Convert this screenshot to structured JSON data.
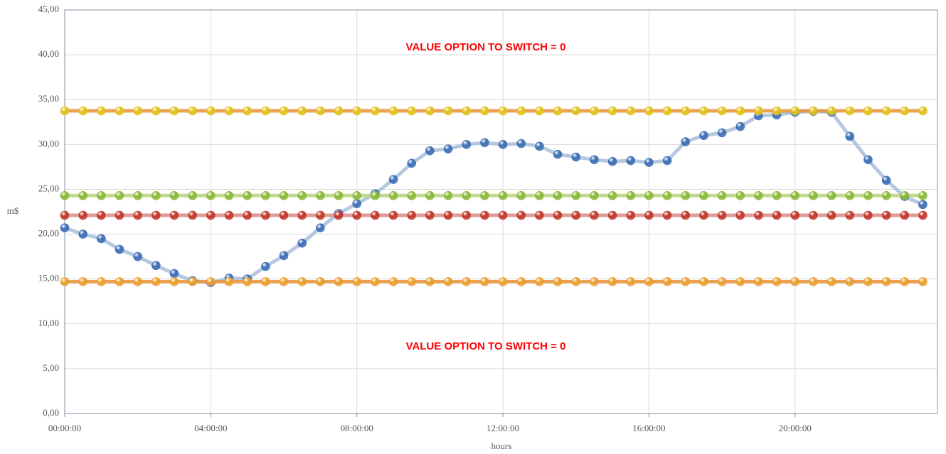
{
  "chart_data": {
    "type": "line",
    "x_label": "hours",
    "y_label": "m$",
    "annotations": [
      "VALUE OPTION TO SWITCH = 0",
      "VALUE OPTION TO SWITCH = 0"
    ],
    "x": [
      0,
      0.5,
      1,
      1.5,
      2,
      2.5,
      3,
      3.5,
      4,
      4.5,
      5,
      5.5,
      6,
      6.5,
      7,
      7.5,
      8,
      8.5,
      9,
      9.5,
      10,
      10.5,
      11,
      11.5,
      12,
      12.5,
      13,
      13.5,
      14,
      14.5,
      15,
      15.5,
      16,
      16.5,
      17,
      17.5,
      18,
      18.5,
      19,
      19.5,
      20,
      20.5,
      21,
      21.5,
      22,
      22.5,
      23,
      23.5
    ],
    "series": [
      {
        "color": "#3d6fb5",
        "line_color": "#a9bedb",
        "values": [
          20.7,
          20.0,
          19.5,
          18.3,
          17.5,
          16.5,
          15.6,
          14.8,
          14.6,
          15.1,
          15.0,
          16.4,
          17.6,
          19.0,
          20.7,
          22.3,
          23.4,
          24.5,
          26.1,
          27.9,
          29.3,
          29.5,
          30.0,
          30.2,
          30.0,
          30.1,
          29.8,
          28.9,
          28.6,
          28.3,
          28.1,
          28.2,
          28.0,
          28.2,
          30.3,
          31.0,
          31.3,
          32.0,
          33.2,
          33.3,
          33.6,
          33.7,
          33.6,
          30.9,
          28.3,
          26.0,
          24.2,
          23.3
        ]
      },
      {
        "color": "#e0c21c",
        "line_color": "#e8923a",
        "values": [
          33.75,
          33.75,
          33.75,
          33.75,
          33.75,
          33.75,
          33.75,
          33.75,
          33.75,
          33.75,
          33.75,
          33.75,
          33.75,
          33.75,
          33.75,
          33.75,
          33.75,
          33.75,
          33.75,
          33.75,
          33.75,
          33.75,
          33.75,
          33.75,
          33.75,
          33.75,
          33.75,
          33.75,
          33.75,
          33.75,
          33.75,
          33.75,
          33.75,
          33.75,
          33.75,
          33.75,
          33.75,
          33.75,
          33.75,
          33.75,
          33.75,
          33.75,
          33.75,
          33.75,
          33.75,
          33.75,
          33.75,
          33.75
        ]
      },
      {
        "color": "#8cb83a",
        "line_color": "#b5d37a",
        "values": [
          24.3,
          24.3,
          24.3,
          24.3,
          24.3,
          24.3,
          24.3,
          24.3,
          24.3,
          24.3,
          24.3,
          24.3,
          24.3,
          24.3,
          24.3,
          24.3,
          24.3,
          24.3,
          24.3,
          24.3,
          24.3,
          24.3,
          24.3,
          24.3,
          24.3,
          24.3,
          24.3,
          24.3,
          24.3,
          24.3,
          24.3,
          24.3,
          24.3,
          24.3,
          24.3,
          24.3,
          24.3,
          24.3,
          24.3,
          24.3,
          24.3,
          24.3,
          24.3,
          24.3,
          24.3,
          24.3,
          24.3,
          24.3
        ]
      },
      {
        "color": "#c0392b",
        "line_color": "#d98a85",
        "values": [
          22.1,
          22.1,
          22.1,
          22.1,
          22.1,
          22.1,
          22.1,
          22.1,
          22.1,
          22.1,
          22.1,
          22.1,
          22.1,
          22.1,
          22.1,
          22.1,
          22.1,
          22.1,
          22.1,
          22.1,
          22.1,
          22.1,
          22.1,
          22.1,
          22.1,
          22.1,
          22.1,
          22.1,
          22.1,
          22.1,
          22.1,
          22.1,
          22.1,
          22.1,
          22.1,
          22.1,
          22.1,
          22.1,
          22.1,
          22.1,
          22.1,
          22.1,
          22.1,
          22.1,
          22.1,
          22.1,
          22.1,
          22.1
        ]
      },
      {
        "color": "#e8a030",
        "line_color": "#e8923a",
        "values": [
          14.7,
          14.7,
          14.7,
          14.7,
          14.7,
          14.7,
          14.7,
          14.7,
          14.7,
          14.7,
          14.7,
          14.7,
          14.7,
          14.7,
          14.7,
          14.7,
          14.7,
          14.7,
          14.7,
          14.7,
          14.7,
          14.7,
          14.7,
          14.7,
          14.7,
          14.7,
          14.7,
          14.7,
          14.7,
          14.7,
          14.7,
          14.7,
          14.7,
          14.7,
          14.7,
          14.7,
          14.7,
          14.7,
          14.7,
          14.7,
          14.7,
          14.7,
          14.7,
          14.7,
          14.7,
          14.7,
          14.7,
          14.7
        ]
      }
    ],
    "xlim": [
      0,
      23.9
    ],
    "xticks": [
      {
        "value": 0,
        "label": "00:00:00"
      },
      {
        "value": 4,
        "label": "04:00:00"
      },
      {
        "value": 8,
        "label": "08:00:00"
      },
      {
        "value": 12,
        "label": "12:00:00"
      },
      {
        "value": 16,
        "label": "16:00:00"
      },
      {
        "value": 20,
        "label": "20:00:00"
      }
    ],
    "ylim": [
      0,
      45
    ],
    "yticks": [
      {
        "value": 0,
        "label": "0,00"
      },
      {
        "value": 5,
        "label": "5,00"
      },
      {
        "value": 10,
        "label": "10,00"
      },
      {
        "value": 15,
        "label": "15,00"
      },
      {
        "value": 20,
        "label": "20,00"
      },
      {
        "value": 25,
        "label": "25,00"
      },
      {
        "value": 30,
        "label": "30,00"
      },
      {
        "value": 35,
        "label": "35,00"
      },
      {
        "value": 40,
        "label": "40,00"
      },
      {
        "value": 45,
        "label": "45,00"
      }
    ],
    "grid": true
  }
}
